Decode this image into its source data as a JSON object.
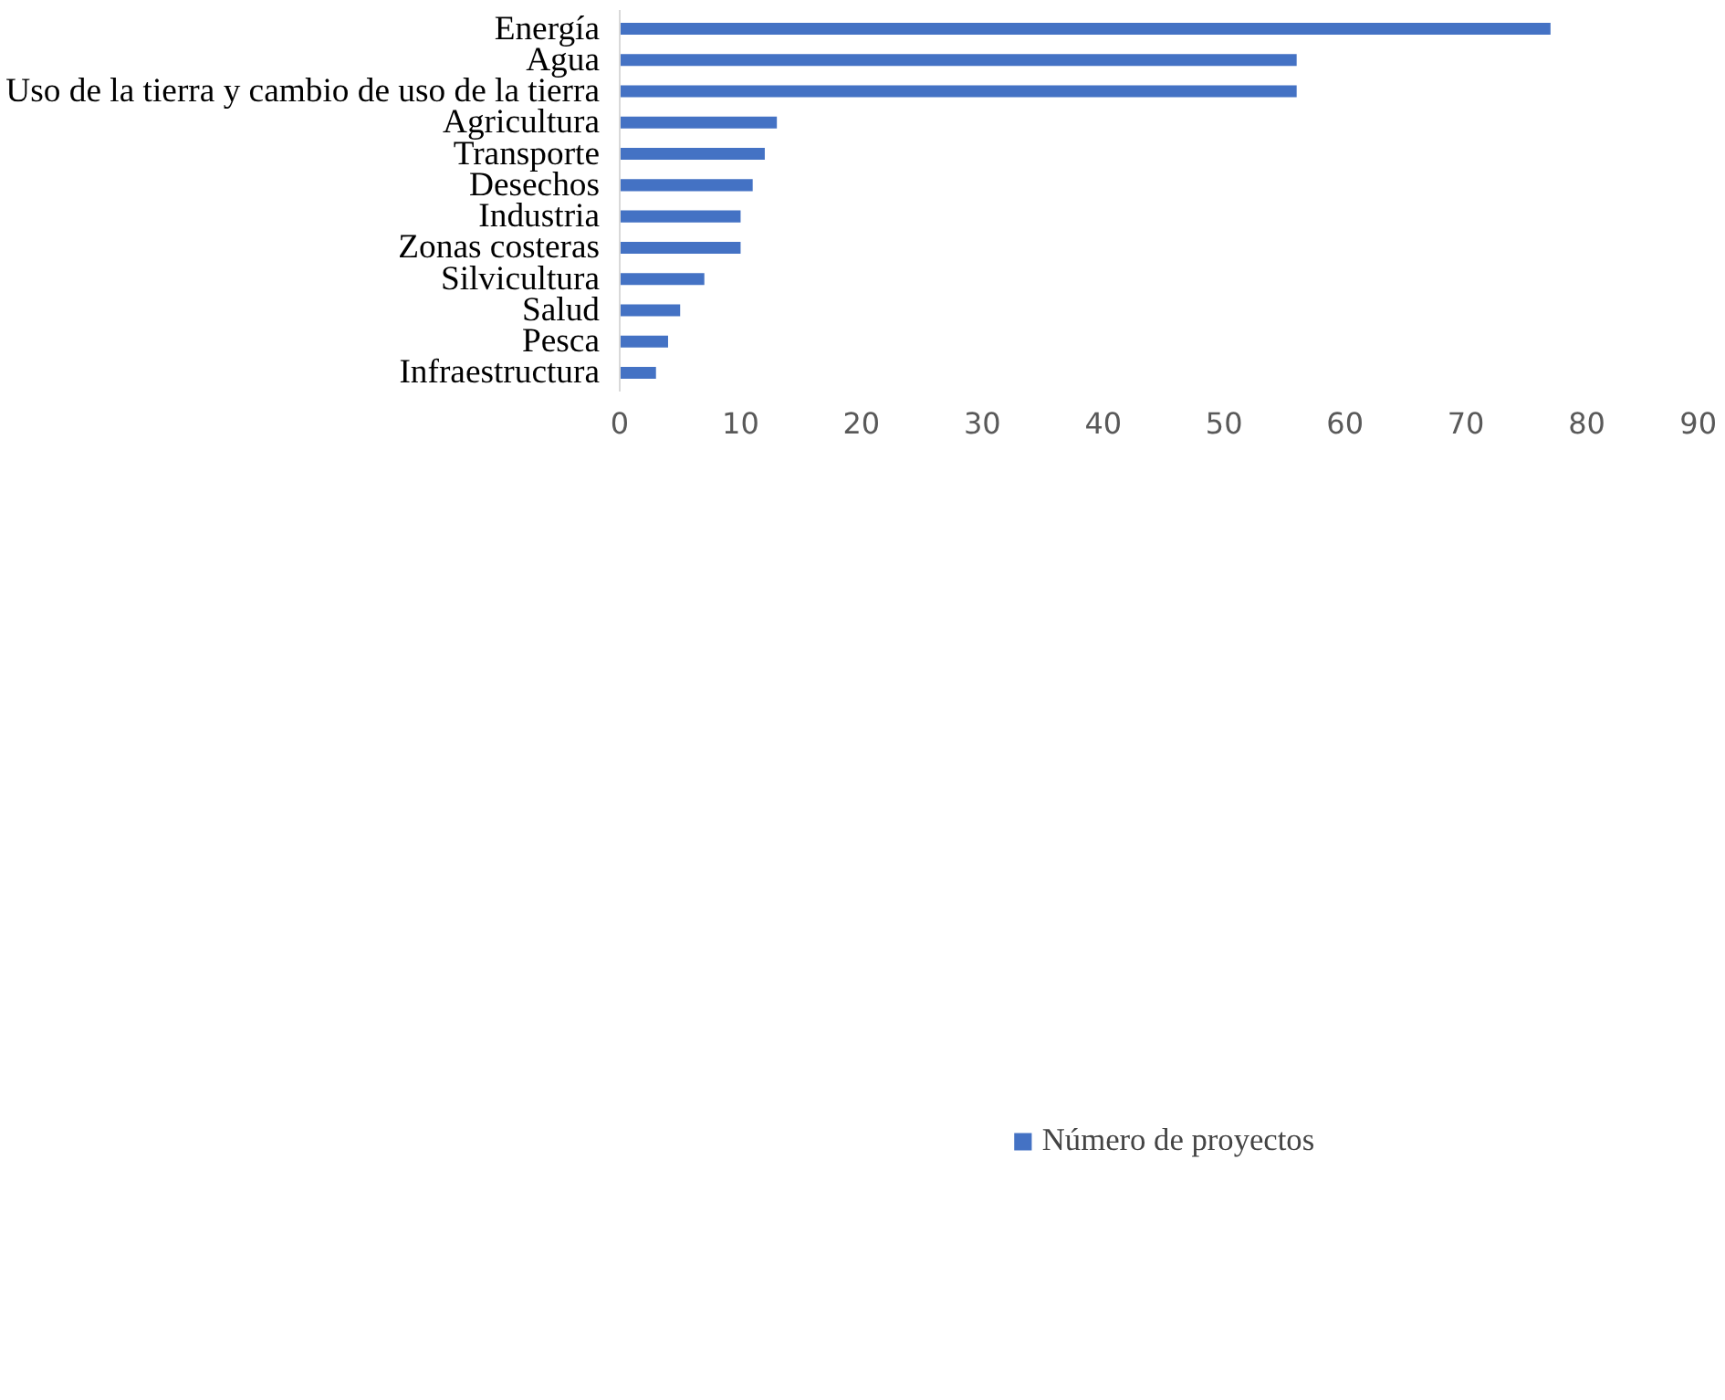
{
  "chart_data": {
    "type": "bar",
    "orientation": "horizontal",
    "categories": [
      "Energía",
      "Agua",
      "Uso de la tierra y cambio de uso de la tierra",
      "Agricultura",
      "Transporte",
      "Desechos",
      "Industria",
      "Zonas costeras",
      "Silvicultura",
      "Salud",
      "Pesca",
      "Infraestructura"
    ],
    "series": [
      {
        "name": "Número de proyectos",
        "color": "#4472c4",
        "values": [
          77,
          56,
          56,
          13,
          12,
          11,
          10,
          10,
          7,
          5,
          4,
          3
        ]
      }
    ],
    "xlim": [
      0,
      90
    ],
    "xticks": [
      0,
      10,
      20,
      30,
      40,
      50,
      60,
      70,
      80,
      90
    ],
    "grid": false,
    "legend": "bottom"
  }
}
